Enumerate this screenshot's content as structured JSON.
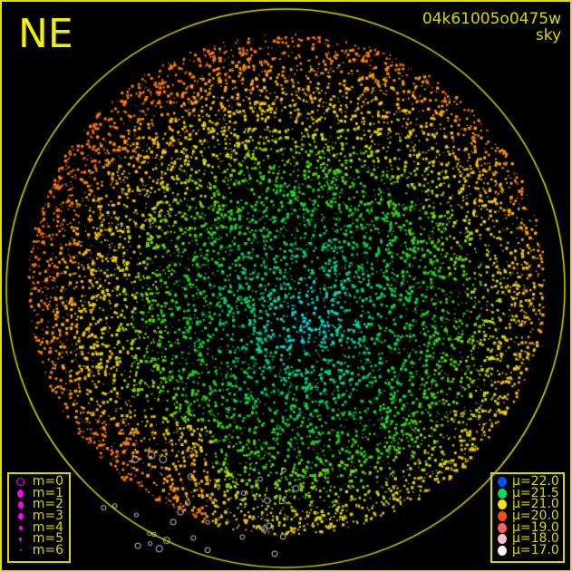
{
  "header": {
    "direction_label": "NE",
    "image_id": "04k61005o0475w",
    "image_type": "sky"
  },
  "magnitude_legend": [
    {
      "label": "m=0",
      "style": "ring"
    },
    {
      "label": "m=1"
    },
    {
      "label": "m=2"
    },
    {
      "label": "m=3"
    },
    {
      "label": "m=4"
    },
    {
      "label": "m=5"
    },
    {
      "label": "m=6"
    }
  ],
  "magnitude_color": "#ff00ff",
  "brightness_legend": [
    {
      "label": "μ=22.0",
      "color": "#0050ff"
    },
    {
      "label": "μ=21.5",
      "color": "#00e060"
    },
    {
      "label": "μ=21.0",
      "color": "#ffe000"
    },
    {
      "label": "μ=20.0",
      "color": "#ff5000"
    },
    {
      "label": "μ=19.0",
      "color": "#ff6060"
    },
    {
      "label": "μ=18.0",
      "color": "#ffc0c8"
    },
    {
      "label": "μ=17.0",
      "color": "#ffffff"
    }
  ],
  "horizon_color": "#d8d800"
}
